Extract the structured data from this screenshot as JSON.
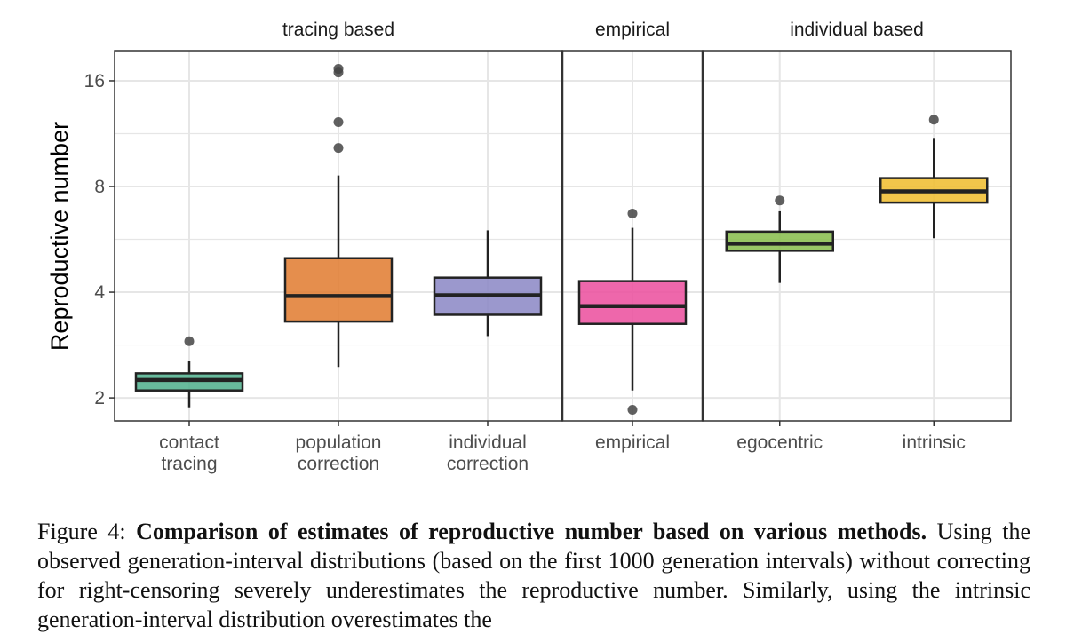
{
  "chart_data": {
    "type": "boxplot",
    "ylabel": "Reproductive number",
    "y_scale": "log2",
    "ylim": [
      1.72,
      19.5
    ],
    "y_ticks": [
      2,
      4,
      8,
      16
    ],
    "y_tick_labels": [
      "2",
      "4",
      "8",
      "16"
    ],
    "grid": true,
    "facets": [
      {
        "label": "tracing based",
        "boxes": [
          {
            "label_lines": [
              "contact",
              "tracing"
            ],
            "color": "#4DAF8C",
            "whisker_low": 1.88,
            "q1": 2.1,
            "median": 2.25,
            "q3": 2.35,
            "whisker_high": 2.55,
            "outliers": [
              2.9
            ]
          },
          {
            "label_lines": [
              "population",
              "correction"
            ],
            "color": "#E07A2E",
            "whisker_low": 2.45,
            "q1": 3.3,
            "median": 3.9,
            "q3": 5.0,
            "whisker_high": 8.6,
            "outliers": [
              10.3,
              12.2,
              16.9,
              17.3
            ]
          },
          {
            "label_lines": [
              "individual",
              "correction"
            ],
            "color": "#8A86C4",
            "whisker_low": 3.0,
            "q1": 3.45,
            "median": 3.92,
            "q3": 4.4,
            "whisker_high": 6.0,
            "outliers": []
          }
        ]
      },
      {
        "label": "empirical",
        "boxes": [
          {
            "label_lines": [
              "empirical"
            ],
            "color": "#EB4C9C",
            "whisker_low": 2.1,
            "q1": 3.25,
            "median": 3.65,
            "q3": 4.3,
            "whisker_high": 6.1,
            "outliers": [
              6.7,
              1.85
            ]
          }
        ]
      },
      {
        "label": "individual based",
        "boxes": [
          {
            "label_lines": [
              "egocentric"
            ],
            "color": "#86BC4A",
            "whisker_low": 4.25,
            "q1": 5.25,
            "median": 5.5,
            "q3": 5.95,
            "whisker_high": 6.8,
            "outliers": [
              7.3
            ]
          },
          {
            "label_lines": [
              "intrinsic"
            ],
            "color": "#F0BC2C",
            "whisker_low": 5.7,
            "q1": 7.2,
            "median": 7.75,
            "q3": 8.45,
            "whisker_high": 11.0,
            "outliers": [
              12.4
            ]
          }
        ]
      }
    ]
  },
  "caption": {
    "label": "Figure 4:",
    "bold": "Comparison of estimates of reproductive number based on various methods.",
    "text": "Using the observed generation-interval distributions (based on the first 1000 generation intervals) without correcting for right-censoring severely underestimates the reproductive number. Similarly, using the intrinsic generation-interval distribution overestimates the"
  }
}
